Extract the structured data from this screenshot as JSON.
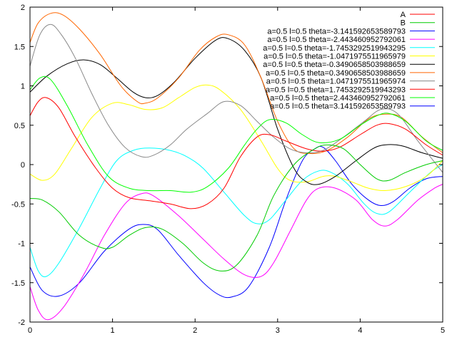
{
  "chart_data": {
    "type": "line",
    "title": "",
    "xlabel": "",
    "ylabel": "",
    "xlim": [
      0,
      5
    ],
    "ylim": [
      -2,
      2
    ],
    "xticks": [
      "0",
      "1",
      "2",
      "3",
      "4",
      "5"
    ],
    "yticks": [
      "2",
      "1.5",
      "1",
      "0.5",
      "0",
      "-0.5",
      "-1",
      "-1.5",
      "-2"
    ],
    "grid": false,
    "legend_position": "top-right",
    "series": [
      {
        "name": "A",
        "color": "#ff0000",
        "points": []
      },
      {
        "name": "B",
        "color": "#00cc00",
        "points": []
      },
      {
        "name": "a=0.5 l=0.5 theta=-3.141592653589793",
        "color": "#0000ff",
        "points": [
          [
            0,
            -1.3
          ],
          [
            0.15,
            -1.6
          ],
          [
            0.35,
            -1.67
          ],
          [
            0.6,
            -1.5
          ],
          [
            0.9,
            -1.1
          ],
          [
            1.2,
            -0.82
          ],
          [
            1.38,
            -0.76
          ],
          [
            1.55,
            -0.83
          ],
          [
            1.8,
            -1.15
          ],
          [
            2.1,
            -1.5
          ],
          [
            2.3,
            -1.66
          ],
          [
            2.45,
            -1.68
          ],
          [
            2.65,
            -1.55
          ],
          [
            2.9,
            -1.05
          ],
          [
            3.1,
            -0.45
          ],
          [
            3.3,
            0.05
          ],
          [
            3.45,
            0.2
          ],
          [
            3.55,
            0.22
          ],
          [
            3.7,
            0.05
          ],
          [
            3.9,
            -0.25
          ],
          [
            4.1,
            -0.45
          ],
          [
            4.25,
            -0.52
          ],
          [
            4.4,
            -0.47
          ],
          [
            4.6,
            -0.3
          ],
          [
            4.8,
            -0.18
          ],
          [
            5,
            -0.15
          ]
        ]
      },
      {
        "name": "a=0.5 l=0.5 theta=-2.443460952792061",
        "color": "#ff00ff",
        "points": [
          [
            0,
            -1.55
          ],
          [
            0.1,
            -1.85
          ],
          [
            0.22,
            -1.97
          ],
          [
            0.4,
            -1.82
          ],
          [
            0.65,
            -1.4
          ],
          [
            0.9,
            -0.9
          ],
          [
            1.15,
            -0.5
          ],
          [
            1.35,
            -0.37
          ],
          [
            1.5,
            -0.4
          ],
          [
            1.8,
            -0.65
          ],
          [
            2.1,
            -0.95
          ],
          [
            2.35,
            -1.2
          ],
          [
            2.6,
            -1.4
          ],
          [
            2.8,
            -1.42
          ],
          [
            2.95,
            -1.25
          ],
          [
            3.15,
            -0.85
          ],
          [
            3.35,
            -0.45
          ],
          [
            3.5,
            -0.3
          ],
          [
            3.7,
            -0.3
          ],
          [
            3.95,
            -0.45
          ],
          [
            4.15,
            -0.7
          ],
          [
            4.3,
            -0.78
          ],
          [
            4.45,
            -0.7
          ],
          [
            4.7,
            -0.45
          ],
          [
            4.9,
            -0.3
          ],
          [
            5,
            -0.25
          ]
        ]
      },
      {
        "name": "a=0.5 l=0.5 theta=-1.7453292519943295",
        "color": "#00ffff",
        "points": [
          [
            0,
            -1.05
          ],
          [
            0.1,
            -1.35
          ],
          [
            0.2,
            -1.42
          ],
          [
            0.35,
            -1.25
          ],
          [
            0.6,
            -0.8
          ],
          [
            0.85,
            -0.3
          ],
          [
            1.05,
            0.05
          ],
          [
            1.25,
            0.18
          ],
          [
            1.45,
            0.21
          ],
          [
            1.7,
            0.18
          ],
          [
            1.9,
            0.1
          ],
          [
            2.1,
            -0.05
          ],
          [
            2.35,
            -0.35
          ],
          [
            2.6,
            -0.65
          ],
          [
            2.75,
            -0.75
          ],
          [
            2.9,
            -0.7
          ],
          [
            3.1,
            -0.45
          ],
          [
            3.3,
            -0.2
          ],
          [
            3.5,
            -0.08
          ],
          [
            3.65,
            -0.1
          ],
          [
            3.85,
            -0.25
          ],
          [
            4.05,
            -0.5
          ],
          [
            4.2,
            -0.62
          ],
          [
            4.35,
            -0.6
          ],
          [
            4.6,
            -0.35
          ],
          [
            4.85,
            -0.1
          ],
          [
            5,
            0
          ]
        ]
      },
      {
        "name": "a=0.5 l=0.5 theta=-1.0471975511965979",
        "color": "#ffff00",
        "points": [
          [
            0,
            -0.12
          ],
          [
            0.15,
            -0.2
          ],
          [
            0.3,
            -0.12
          ],
          [
            0.5,
            0.2
          ],
          [
            0.75,
            0.6
          ],
          [
            1.0,
            0.78
          ],
          [
            1.2,
            0.76
          ],
          [
            1.4,
            0.7
          ],
          [
            1.6,
            0.72
          ],
          [
            1.8,
            0.85
          ],
          [
            2.0,
            0.98
          ],
          [
            2.15,
            1.01
          ],
          [
            2.3,
            0.95
          ],
          [
            2.55,
            0.7
          ],
          [
            2.8,
            0.3
          ],
          [
            3.0,
            -0.05
          ],
          [
            3.15,
            -0.2
          ],
          [
            3.35,
            -0.22
          ],
          [
            3.55,
            -0.15
          ],
          [
            3.7,
            -0.15
          ],
          [
            3.9,
            -0.22
          ],
          [
            4.1,
            -0.3
          ],
          [
            4.3,
            -0.33
          ],
          [
            4.55,
            -0.28
          ],
          [
            4.8,
            -0.15
          ],
          [
            5,
            0.05
          ]
        ]
      },
      {
        "name": "a=0.5 l=0.5 theta=-0.3490658503988659",
        "color": "#000000",
        "points": [
          [
            0,
            0.92
          ],
          [
            0.2,
            1.12
          ],
          [
            0.45,
            1.28
          ],
          [
            0.65,
            1.33
          ],
          [
            0.85,
            1.27
          ],
          [
            1.05,
            1.1
          ],
          [
            1.25,
            0.92
          ],
          [
            1.4,
            0.85
          ],
          [
            1.55,
            0.88
          ],
          [
            1.75,
            1.05
          ],
          [
            2.0,
            1.35
          ],
          [
            2.25,
            1.58
          ],
          [
            2.4,
            1.6
          ],
          [
            2.6,
            1.45
          ],
          [
            2.8,
            1.1
          ],
          [
            3.0,
            0.45
          ],
          [
            3.2,
            -0.05
          ],
          [
            3.35,
            -0.22
          ],
          [
            3.5,
            -0.25
          ],
          [
            3.7,
            -0.15
          ],
          [
            3.95,
            0.05
          ],
          [
            4.15,
            0.2
          ],
          [
            4.3,
            0.25
          ],
          [
            4.5,
            0.24
          ],
          [
            4.75,
            0.15
          ],
          [
            5,
            0.08
          ]
        ]
      },
      {
        "name": "a=0.5 l=0.5 theta=0.3490658503988659",
        "color": "#ff6600",
        "points": [
          [
            0,
            1.55
          ],
          [
            0.1,
            1.8
          ],
          [
            0.25,
            1.92
          ],
          [
            0.4,
            1.9
          ],
          [
            0.6,
            1.72
          ],
          [
            0.85,
            1.4
          ],
          [
            1.1,
            1.0
          ],
          [
            1.3,
            0.8
          ],
          [
            1.4,
            0.78
          ],
          [
            1.55,
            0.85
          ],
          [
            1.8,
            1.1
          ],
          [
            2.05,
            1.45
          ],
          [
            2.25,
            1.62
          ],
          [
            2.4,
            1.65
          ],
          [
            2.6,
            1.52
          ],
          [
            2.8,
            1.1
          ],
          [
            3.0,
            0.55
          ],
          [
            3.2,
            0.2
          ],
          [
            3.4,
            0.14
          ],
          [
            3.6,
            0.18
          ],
          [
            3.85,
            0.35
          ],
          [
            4.1,
            0.58
          ],
          [
            4.3,
            0.64
          ],
          [
            4.5,
            0.6
          ],
          [
            4.75,
            0.35
          ],
          [
            5,
            0.15
          ]
        ]
      },
      {
        "name": "a=0.5 l=0.5 theta=1.0471975511965974",
        "color": "#888888",
        "points": [
          [
            0,
            1.25
          ],
          [
            0.12,
            1.65
          ],
          [
            0.25,
            1.78
          ],
          [
            0.38,
            1.65
          ],
          [
            0.55,
            1.35
          ],
          [
            0.75,
            0.9
          ],
          [
            0.95,
            0.5
          ],
          [
            1.15,
            0.22
          ],
          [
            1.35,
            0.1
          ],
          [
            1.5,
            0.12
          ],
          [
            1.7,
            0.25
          ],
          [
            1.9,
            0.45
          ],
          [
            2.15,
            0.65
          ],
          [
            2.35,
            0.8
          ],
          [
            2.55,
            0.75
          ],
          [
            2.75,
            0.55
          ],
          [
            2.95,
            0.35
          ],
          [
            3.15,
            0.2
          ],
          [
            3.35,
            0.15
          ],
          [
            3.55,
            0.18
          ],
          [
            3.8,
            0.35
          ],
          [
            4.05,
            0.55
          ],
          [
            4.25,
            0.7
          ],
          [
            4.45,
            0.65
          ],
          [
            4.7,
            0.3
          ],
          [
            5,
            -0.1
          ]
        ]
      },
      {
        "name": "a=0.5 l=0.5 theta=1.7453292519943293",
        "color": "#ff0000",
        "points": [
          [
            0,
            0.62
          ],
          [
            0.1,
            0.8
          ],
          [
            0.2,
            0.85
          ],
          [
            0.35,
            0.72
          ],
          [
            0.55,
            0.35
          ],
          [
            0.8,
            -0.05
          ],
          [
            1.0,
            -0.3
          ],
          [
            1.2,
            -0.42
          ],
          [
            1.45,
            -0.46
          ],
          [
            1.7,
            -0.5
          ],
          [
            1.95,
            -0.56
          ],
          [
            2.15,
            -0.5
          ],
          [
            2.35,
            -0.3
          ],
          [
            2.55,
            0.1
          ],
          [
            2.75,
            0.35
          ],
          [
            2.9,
            0.38
          ],
          [
            3.1,
            0.3
          ],
          [
            3.35,
            0.2
          ],
          [
            3.55,
            0.17
          ],
          [
            3.75,
            0.22
          ],
          [
            4.0,
            0.38
          ],
          [
            4.2,
            0.5
          ],
          [
            4.35,
            0.52
          ],
          [
            4.55,
            0.45
          ],
          [
            4.8,
            0.25
          ],
          [
            5,
            0.12
          ]
        ]
      },
      {
        "name": "a=0.5 l=0.5 theta=2.443460952792061",
        "color": "#00ff00",
        "points": [
          [
            0,
            0.95
          ],
          [
            0.12,
            1.1
          ],
          [
            0.25,
            1.08
          ],
          [
            0.45,
            0.75
          ],
          [
            0.7,
            0.25
          ],
          [
            0.95,
            -0.15
          ],
          [
            1.2,
            -0.3
          ],
          [
            1.45,
            -0.33
          ],
          [
            1.7,
            -0.33
          ],
          [
            1.95,
            -0.35
          ],
          [
            2.15,
            -0.28
          ],
          [
            2.4,
            -0.05
          ],
          [
            2.6,
            0.25
          ],
          [
            2.75,
            0.45
          ],
          [
            2.9,
            0.57
          ],
          [
            3.1,
            0.53
          ],
          [
            3.3,
            0.38
          ],
          [
            3.5,
            0.28
          ],
          [
            3.75,
            0.32
          ],
          [
            4.0,
            0.5
          ],
          [
            4.2,
            0.62
          ],
          [
            4.35,
            0.65
          ],
          [
            4.55,
            0.55
          ],
          [
            4.8,
            0.3
          ],
          [
            5,
            0.18
          ]
        ]
      },
      {
        "name": "a=0.5 l=0.5 theta=3.141592653589793",
        "color": "#0000ff",
        "points": []
      },
      {
        "name": "",
        "color": "#00cc00",
        "points": [
          [
            0,
            -0.43
          ],
          [
            0.15,
            -0.45
          ],
          [
            0.35,
            -0.6
          ],
          [
            0.6,
            -0.9
          ],
          [
            0.85,
            -1.05
          ],
          [
            1.0,
            -1.05
          ],
          [
            1.2,
            -0.9
          ],
          [
            1.4,
            -0.8
          ],
          [
            1.6,
            -0.82
          ],
          [
            1.85,
            -1.0
          ],
          [
            2.1,
            -1.25
          ],
          [
            2.3,
            -1.35
          ],
          [
            2.5,
            -1.28
          ],
          [
            2.75,
            -0.9
          ],
          [
            2.95,
            -0.4
          ],
          [
            3.2,
            0.0
          ],
          [
            3.45,
            0.2
          ],
          [
            3.6,
            0.25
          ],
          [
            3.8,
            0.2
          ],
          [
            4.0,
            0.0
          ],
          [
            4.2,
            -0.18
          ],
          [
            4.35,
            -0.2
          ],
          [
            4.55,
            -0.1
          ],
          [
            4.8,
            0.0
          ],
          [
            5,
            0.05
          ]
        ]
      }
    ]
  }
}
